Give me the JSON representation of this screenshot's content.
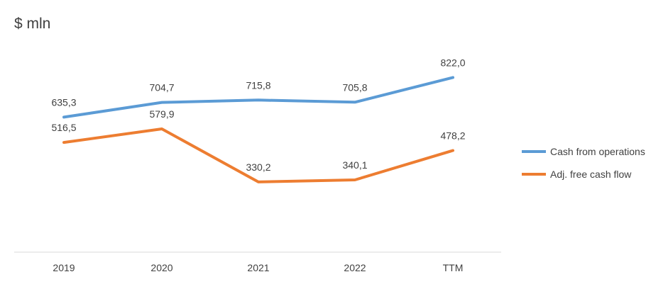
{
  "chart_data": {
    "type": "line",
    "title": "",
    "unit_label": "$ mln",
    "categories": [
      "2019",
      "2020",
      "2021",
      "2022",
      "TTM"
    ],
    "ylim": [
      0,
      1000
    ],
    "grid": false,
    "legend_position": "right",
    "series": [
      {
        "name": "Cash from operations",
        "color": "#5B9BD5",
        "values": [
          635.3,
          704.7,
          715.8,
          705.8,
          822.0
        ],
        "labels": [
          "635,3",
          "704,7",
          "715,8",
          "705,8",
          "822,0"
        ]
      },
      {
        "name": "Adj. free cash flow",
        "color": "#ED7D31",
        "values": [
          516.5,
          579.9,
          330.2,
          340.1,
          478.2
        ],
        "labels": [
          "516,5",
          "579,9",
          "330,2",
          "340,1",
          "478,2"
        ]
      }
    ]
  }
}
